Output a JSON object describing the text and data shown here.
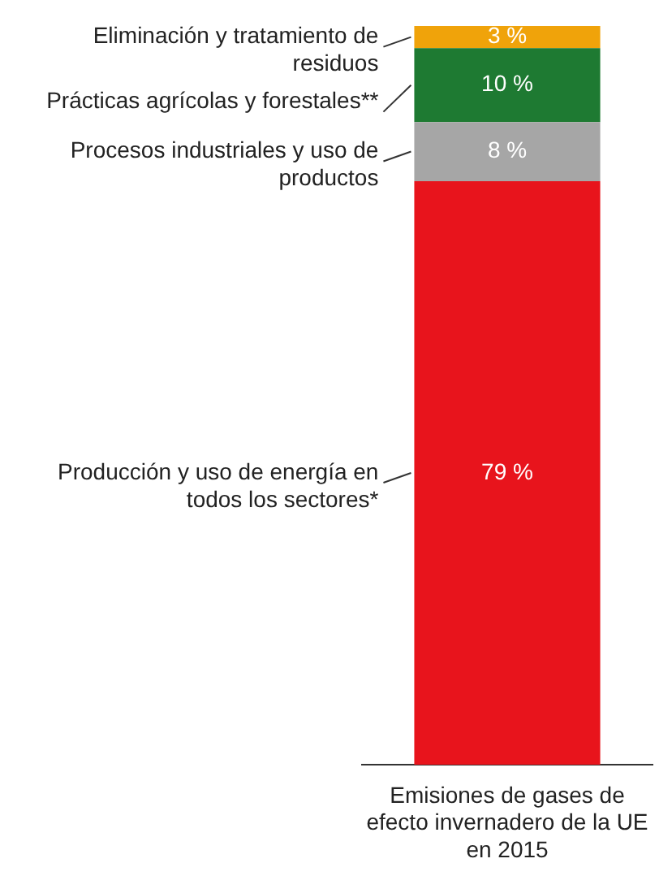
{
  "chart_data": {
    "type": "bar",
    "stacked": true,
    "legend": false,
    "tick_labels": "x",
    "categories": [
      "Emisiones de gases de efecto invernadero de la UE en 2015"
    ],
    "series": [
      {
        "name": "Producción y uso de energía en todos los sectores*",
        "color": "#e8141c",
        "values": [
          79
        ],
        "value_labels": [
          "79 %"
        ]
      },
      {
        "name": "Procesos industriales y uso de productos",
        "color": "#a6a6a6",
        "values": [
          8
        ],
        "value_labels": [
          "8 %"
        ]
      },
      {
        "name": "Prácticas agrícolas y forestales**",
        "color": "#1e7a32",
        "values": [
          10
        ],
        "value_labels": [
          "10 %"
        ]
      },
      {
        "name": "Eliminación y tratamiento de residuos",
        "color": "#f0a30a",
        "values": [
          3
        ],
        "value_labels": [
          "3 %"
        ]
      }
    ]
  }
}
